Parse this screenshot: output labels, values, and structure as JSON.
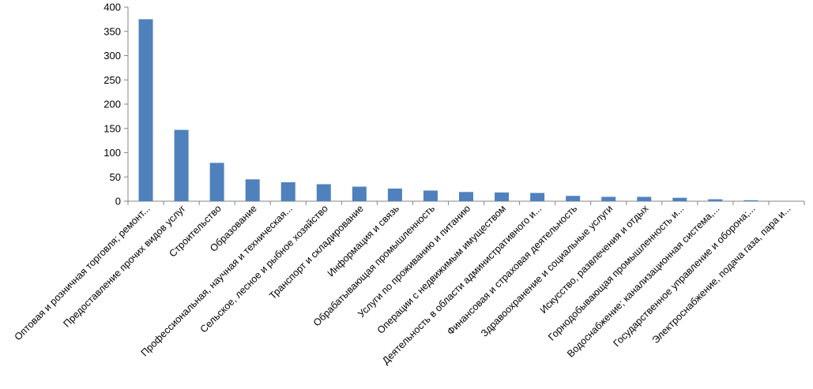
{
  "chart_data": {
    "type": "bar",
    "title": "",
    "xlabel": "",
    "ylabel": "",
    "ylim": [
      0,
      400
    ],
    "yticks": [
      "0",
      "50",
      "100",
      "150",
      "200",
      "250",
      "300",
      "350",
      "400"
    ],
    "grid": false,
    "legend": "none",
    "bar_color": "#4F81BD",
    "categories": [
      "Оптовая и розничная торговля; ремонт...",
      "Предоставление прочих видов услуг",
      "Строительство",
      "Образование",
      "Профессиональная, научная и техническая...",
      "Сельское, лесное и рыбное хозяйство",
      "Транспорт и складирование",
      "Информация и связь",
      "Обрабатывающая промышленность",
      "Услуги по проживанию и питанию",
      "Операции с недвижимым имуществом",
      "Деятельность в области административного и...",
      "Финансовая и страховая деятельность",
      "Здравоохранение и социальные услуги",
      "Искусство, развлечения и отдых",
      "Горнодобывающая промышленность и...",
      "Водоснабжение; канализационная система,...",
      "Государственное управление и оборона;...",
      "Электроснабжение, подача газа, пара и..."
    ],
    "values": [
      375,
      147,
      79,
      45,
      39,
      35,
      30,
      26,
      22,
      19,
      18,
      17,
      11,
      9,
      9,
      7,
      4,
      2,
      0
    ]
  }
}
